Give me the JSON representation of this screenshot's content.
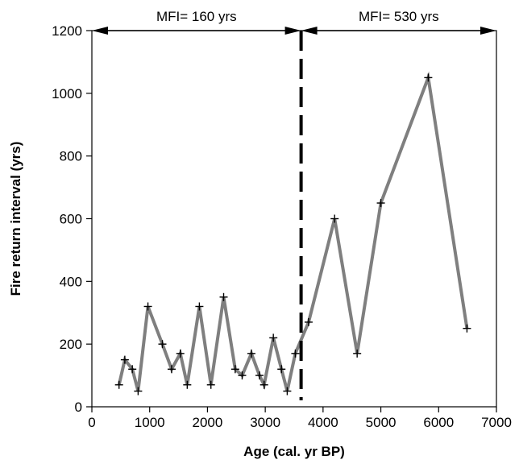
{
  "chart_data": {
    "type": "line",
    "title": "",
    "xlabel": "Age (cal. yr BP)",
    "ylabel": "Fire return interval (yrs)",
    "xlim": [
      0,
      7000
    ],
    "ylim": [
      0,
      1200
    ],
    "xticks": [
      0,
      1000,
      2000,
      3000,
      4000,
      5000,
      6000,
      7000
    ],
    "yticks": [
      0,
      200,
      400,
      600,
      800,
      1000,
      1200
    ],
    "grid": false,
    "series": [
      {
        "color": "#7f7f7f",
        "marker": "plus",
        "x": [
          470,
          570,
          700,
          800,
          970,
          1220,
          1380,
          1530,
          1650,
          1860,
          2060,
          2280,
          2480,
          2600,
          2760,
          2900,
          2980,
          3140,
          3280,
          3380,
          3520,
          3750,
          4200,
          4590,
          5000,
          5820,
          6490
        ],
        "y": [
          70,
          150,
          120,
          50,
          320,
          200,
          120,
          170,
          70,
          320,
          70,
          350,
          120,
          100,
          170,
          100,
          70,
          220,
          120,
          50,
          170,
          270,
          600,
          170,
          650,
          1050,
          250
        ]
      }
    ],
    "annotations": {
      "divider_x": 3620,
      "left_label": "MFI= 160 yrs",
      "right_label": "MFI= 530 yrs"
    }
  }
}
